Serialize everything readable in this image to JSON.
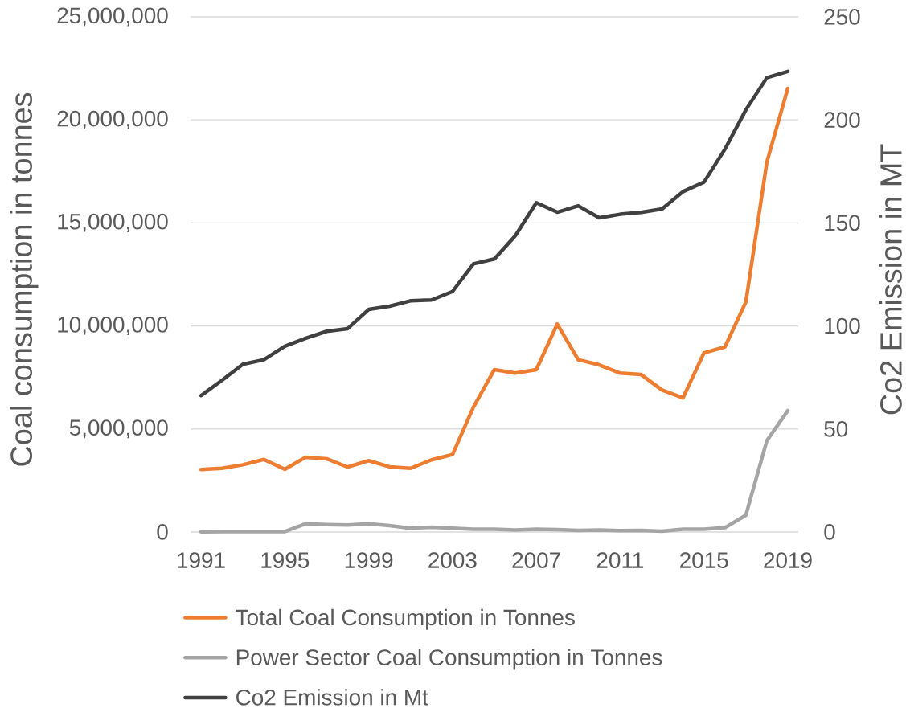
{
  "chart_data": {
    "type": "line",
    "ylabel": "Coal consumption in tonnes",
    "y2label": "Co2 Emission in MT",
    "x": [
      1991,
      1992,
      1993,
      1994,
      1995,
      1996,
      1997,
      1998,
      1999,
      2000,
      2001,
      2002,
      2003,
      2004,
      2005,
      2006,
      2007,
      2008,
      2009,
      2010,
      2011,
      2012,
      2013,
      2014,
      2015,
      2016,
      2017,
      2018,
      2019
    ],
    "xlim": [
      1990.5,
      2019.5
    ],
    "xticks": [
      1991,
      1995,
      1999,
      2003,
      2007,
      2011,
      2015,
      2019
    ],
    "ylim": [
      0,
      25000000
    ],
    "yticks": [
      0,
      {
        "value": 5000000,
        "label": "5,000,000"
      },
      {
        "value": 10000000,
        "label": "10,000,000"
      },
      {
        "value": 15000000,
        "label": "15,000,000"
      },
      {
        "value": 20000000,
        "label": "20,000,000"
      },
      {
        "value": 25000000,
        "label": "25,000,000"
      }
    ],
    "y2lim": [
      0,
      250
    ],
    "y2ticks": [
      0,
      50,
      100,
      150,
      200,
      250
    ],
    "grid": "y",
    "legend": "bottom",
    "series": [
      {
        "name": "Total Coal Consumption in Tonnes",
        "color": "#ed7d31",
        "values": [
          3030000,
          3090000,
          3260000,
          3520000,
          3040000,
          3630000,
          3550000,
          3150000,
          3460000,
          3160000,
          3090000,
          3500000,
          3760000,
          6060000,
          7880000,
          7710000,
          7880000,
          10090000,
          8360000,
          8110000,
          7710000,
          7640000,
          6890000,
          6510000,
          8690000,
          8980000,
          11170000,
          17950000,
          21530000
        ]
      },
      {
        "name": "Power Sector Coal Consumption in Tonnes",
        "color": "#a5a5a5",
        "values": [
          10000,
          20000,
          20000,
          20000,
          20000,
          400000,
          360000,
          340000,
          400000,
          310000,
          180000,
          230000,
          180000,
          140000,
          140000,
          100000,
          140000,
          120000,
          80000,
          100000,
          70000,
          80000,
          40000,
          140000,
          140000,
          210000,
          820000,
          4430000,
          5890000
        ]
      },
      {
        "name": "Co2 Emission in Mt",
        "color": "#404040",
        "axis": "y2",
        "values": [
          66.2,
          73.6,
          81.4,
          83.6,
          90.1,
          94.0,
          97.4,
          98.7,
          108.0,
          109.6,
          112.2,
          112.6,
          116.7,
          130.1,
          132.5,
          143.8,
          159.8,
          155.2,
          158.3,
          152.5,
          154.2,
          155.1,
          156.8,
          165.2,
          169.8,
          185.8,
          204.9,
          220.5,
          223.5
        ]
      }
    ]
  }
}
